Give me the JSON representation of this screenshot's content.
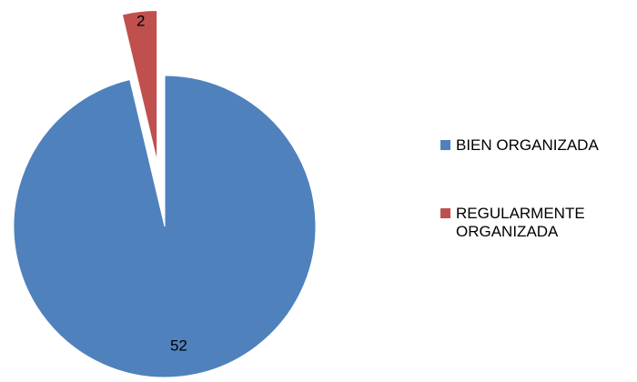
{
  "chart_data": {
    "type": "pie",
    "categories": [
      "BIEN ORGANIZADA",
      "REGULARMENTE ORGANIZADA"
    ],
    "values": [
      52,
      2
    ],
    "colors": [
      "#4f81bd",
      "#c0504d"
    ],
    "legend": "right"
  }
}
